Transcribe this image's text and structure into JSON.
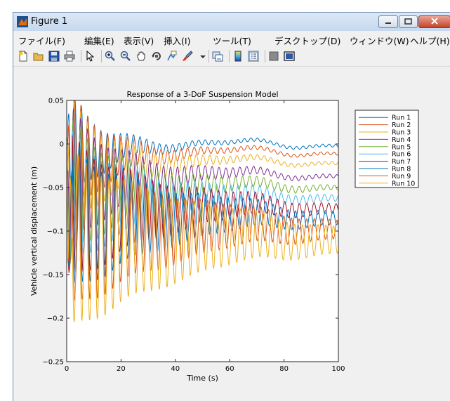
{
  "window": {
    "title": "Figure 1",
    "app_icon": "matlab-figure-icon",
    "controls": [
      "minimize-icon",
      "maximize-icon",
      "close-icon"
    ]
  },
  "menu": [
    "ファイル(F)",
    "編集(E)",
    "表示(V)",
    "挿入(I)",
    "ツール(T)",
    "デスクトップ(D)",
    "ウィンドウ(W)",
    "ヘルプ(H)"
  ],
  "toolbar": [
    {
      "icon": "new-figure-icon",
      "name": "new-figure-button"
    },
    {
      "icon": "open-file-icon",
      "name": "open-file-button"
    },
    {
      "icon": "save-icon",
      "name": "save-button"
    },
    {
      "icon": "print-icon",
      "name": "print-button"
    },
    {
      "icon": "sep"
    },
    {
      "icon": "pointer-icon",
      "name": "edit-plot-button"
    },
    {
      "icon": "sep"
    },
    {
      "icon": "zoom-in-icon",
      "name": "zoom-in-button"
    },
    {
      "icon": "zoom-out-icon",
      "name": "zoom-out-button"
    },
    {
      "icon": "pan-hand-icon",
      "name": "pan-button"
    },
    {
      "icon": "rotate-3d-icon",
      "name": "rotate-button"
    },
    {
      "icon": "data-cursor-icon",
      "name": "data-cursor-button"
    },
    {
      "icon": "brush-icon",
      "name": "brush-button"
    },
    {
      "icon": "dropdown-arrow-icon",
      "name": "brush-dropdown"
    },
    {
      "icon": "sep"
    },
    {
      "icon": "link-plot-icon",
      "name": "link-plot-button"
    },
    {
      "icon": "sep"
    },
    {
      "icon": "colorbar-icon",
      "name": "colorbar-button"
    },
    {
      "icon": "legend-icon",
      "name": "legend-button"
    },
    {
      "icon": "sep"
    },
    {
      "icon": "hide-plot-tools-icon",
      "name": "hide-plot-tools-button"
    },
    {
      "icon": "show-plot-tools-icon",
      "name": "show-plot-tools-button"
    }
  ],
  "chart_data": {
    "type": "line",
    "title": "Response of a 3-DoF Suspension Model",
    "xlabel": "Time (s)",
    "ylabel": "Vehicle vertical displacement (m)",
    "xlim": [
      0,
      100
    ],
    "ylim": [
      -0.25,
      0.05
    ],
    "xticks": [
      0,
      20,
      40,
      60,
      80,
      100
    ],
    "yticks": [
      0.05,
      0,
      -0.05,
      -0.1,
      -0.15,
      -0.2,
      -0.25
    ],
    "ytick_labels": [
      "0.05",
      "0",
      "−0.05",
      "−0.1",
      "−0.15",
      "−0.2",
      "−0.25"
    ],
    "grid": false,
    "legend_placement": "outside-top-right",
    "series": [
      {
        "name": "Run 1",
        "color": "#0072BD",
        "steady": 0.0,
        "initial_min": -0.07,
        "osc_decay_s": 12
      },
      {
        "name": "Run 2",
        "color": "#D95319",
        "steady": -0.009,
        "initial_min": -0.09,
        "osc_decay_s": 14
      },
      {
        "name": "Run 3",
        "color": "#EDB120",
        "steady": -0.02,
        "initial_min": -0.1,
        "osc_decay_s": 17
      },
      {
        "name": "Run 4",
        "color": "#7E2F8E",
        "steady": -0.035,
        "initial_min": -0.12,
        "osc_decay_s": 20
      },
      {
        "name": "Run 5",
        "color": "#77AC30",
        "steady": -0.048,
        "initial_min": -0.13,
        "osc_decay_s": 24
      },
      {
        "name": "Run 6",
        "color": "#4DBEEE",
        "steady": -0.06,
        "initial_min": -0.14,
        "osc_decay_s": 28
      },
      {
        "name": "Run 7",
        "color": "#A2142F",
        "steady": -0.072,
        "initial_min": -0.16,
        "osc_decay_s": 33
      },
      {
        "name": "Run 8",
        "color": "#0072BD",
        "steady": -0.083,
        "initial_min": -0.17,
        "osc_decay_s": 38
      },
      {
        "name": "Run 9",
        "color": "#D95319",
        "steady": -0.096,
        "initial_min": -0.19,
        "osc_decay_s": 44
      },
      {
        "name": "Run 10",
        "color": "#EDB120",
        "steady": -0.108,
        "initial_min": -0.215,
        "osc_decay_s": 50
      }
    ]
  }
}
